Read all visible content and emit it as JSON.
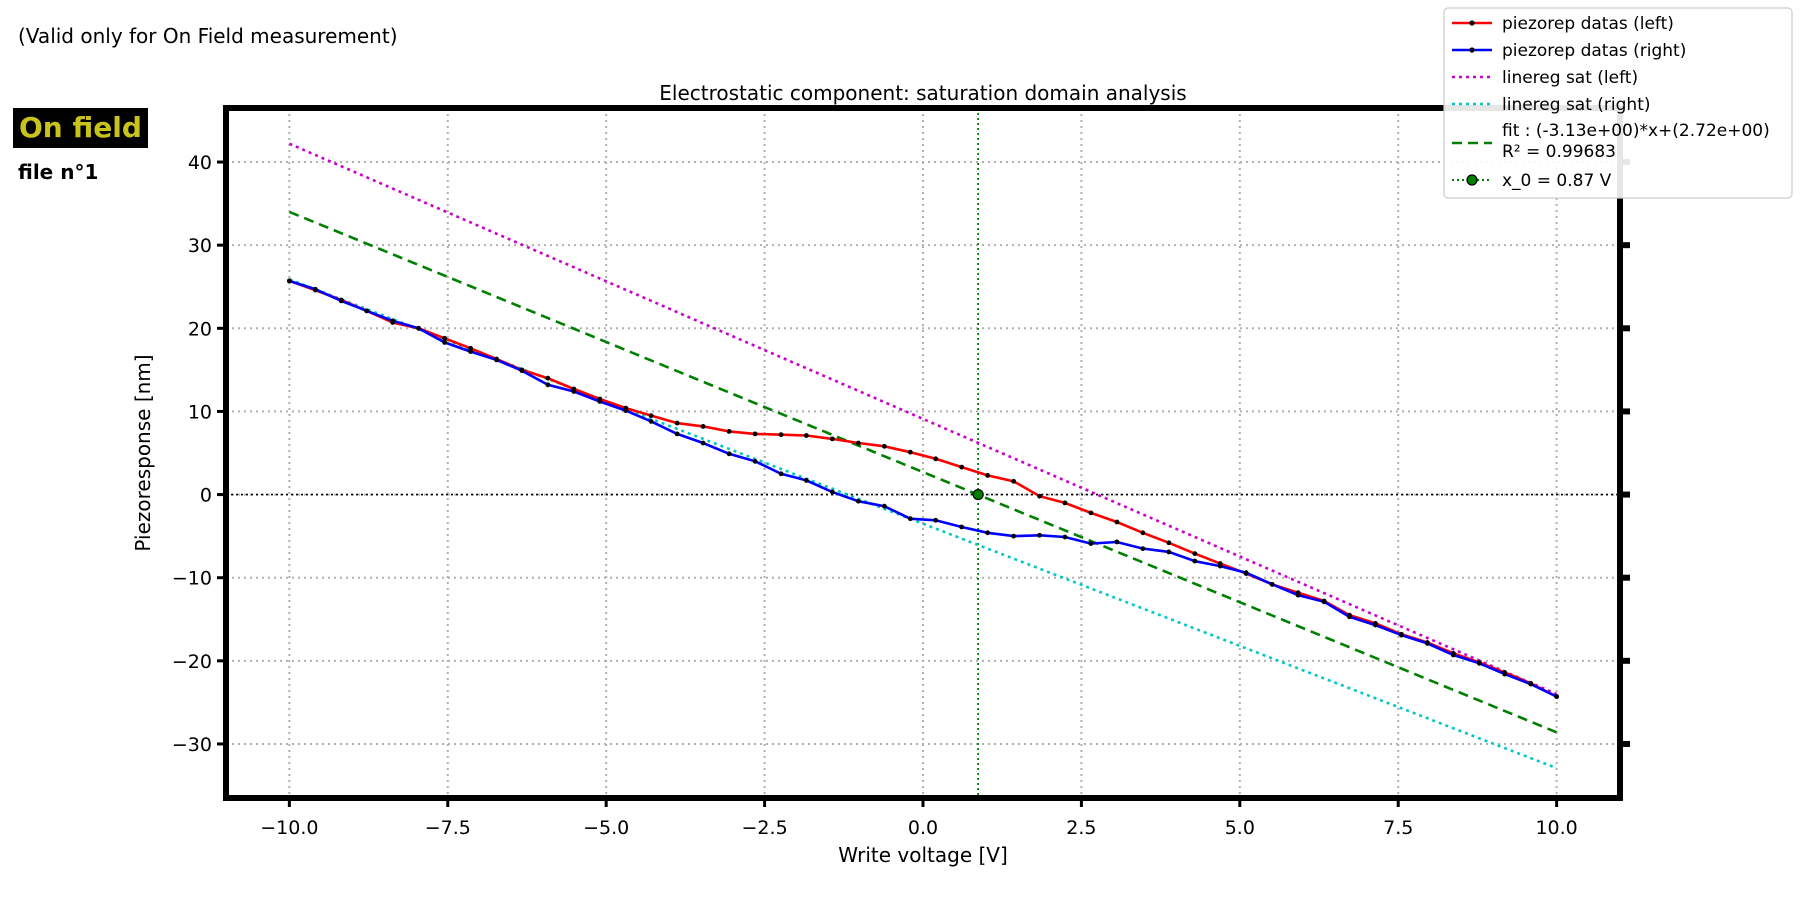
{
  "side_note": "(Valid only for On Field measurement)",
  "badge": "On field",
  "file_label": "file n°1",
  "chart_data": {
    "type": "line",
    "title": "Electrostatic component: saturation domain analysis",
    "xlabel": "Write voltage [V]",
    "ylabel": "Piezoresponse [nm]",
    "xlim": [
      -11,
      11
    ],
    "ylim": [
      -36.5,
      46.5
    ],
    "xticks": [
      -10,
      -7.5,
      -5,
      -2.5,
      0,
      2.5,
      5,
      7.5,
      10
    ],
    "xtick_labels": [
      "−10.0",
      "−7.5",
      "−5.0",
      "−2.5",
      "0.0",
      "2.5",
      "5.0",
      "7.5",
      "10.0"
    ],
    "yticks": [
      -30,
      -20,
      -10,
      0,
      10,
      20,
      30,
      40
    ],
    "ytick_labels": [
      "−30",
      "−20",
      "−10",
      "0",
      "10",
      "20",
      "30",
      "40"
    ],
    "grid": true,
    "legend_position": "top-right",
    "colors": {
      "left": "#ff0000",
      "right": "#0000ff",
      "linereg_left": "#cc00cc",
      "linereg_right": "#00c8c8",
      "fit": "#008000",
      "x0": "#008000"
    },
    "series": [
      {
        "name": "piezorep datas (left)",
        "style": "solid-marker",
        "x": [
          -10,
          -9.59,
          -9.18,
          -8.78,
          -8.37,
          -7.96,
          -7.55,
          -7.14,
          -6.73,
          -6.33,
          -5.92,
          -5.51,
          -5.1,
          -4.69,
          -4.29,
          -3.88,
          -3.47,
          -3.06,
          -2.65,
          -2.24,
          -1.84,
          -1.43,
          -1.02,
          -0.61,
          -0.2,
          0.2,
          0.61,
          1.02,
          1.43,
          1.84,
          2.24,
          2.65,
          3.06,
          3.47,
          3.88,
          4.29,
          4.69,
          5.1,
          5.51,
          5.92,
          6.33,
          6.73,
          7.14,
          7.55,
          7.96,
          8.37,
          8.78,
          9.18,
          9.59,
          10
        ],
        "y": [
          25.7,
          24.6,
          23.4,
          22.1,
          20.7,
          20.0,
          18.8,
          17.6,
          16.3,
          15.0,
          14.0,
          12.7,
          11.5,
          10.4,
          9.5,
          8.6,
          8.2,
          7.6,
          7.3,
          7.2,
          7.1,
          6.7,
          6.2,
          5.8,
          5.1,
          4.3,
          3.3,
          2.3,
          1.6,
          -0.2,
          -1.0,
          -2.2,
          -3.3,
          -4.6,
          -5.8,
          -7.1,
          -8.3,
          -9.5,
          -10.8,
          -11.8,
          -12.8,
          -14.5,
          -15.5,
          -16.8,
          -17.8,
          -19.1,
          -20.2,
          -21.4,
          -22.7,
          -24.3
        ]
      },
      {
        "name": "piezorep datas (right)",
        "style": "solid-marker",
        "x": [
          -10,
          -9.59,
          -9.18,
          -8.78,
          -8.37,
          -7.96,
          -7.55,
          -7.14,
          -6.73,
          -6.33,
          -5.92,
          -5.51,
          -5.1,
          -4.69,
          -4.29,
          -3.88,
          -3.47,
          -3.06,
          -2.65,
          -2.24,
          -1.84,
          -1.43,
          -1.02,
          -0.61,
          -0.2,
          0.2,
          0.61,
          1.02,
          1.43,
          1.84,
          2.24,
          2.65,
          3.06,
          3.47,
          3.88,
          4.29,
          4.69,
          5.1,
          5.51,
          5.92,
          6.33,
          6.73,
          7.14,
          7.55,
          7.96,
          8.37,
          8.78,
          9.18,
          9.59,
          10
        ],
        "y": [
          25.7,
          24.7,
          23.3,
          22.1,
          20.9,
          20.0,
          18.3,
          17.2,
          16.2,
          14.9,
          13.2,
          12.4,
          11.2,
          10.1,
          8.8,
          7.3,
          6.2,
          4.9,
          4.0,
          2.5,
          1.7,
          0.3,
          -0.8,
          -1.4,
          -2.9,
          -3.1,
          -3.9,
          -4.6,
          -5.0,
          -4.9,
          -5.1,
          -5.9,
          -5.7,
          -6.5,
          -6.9,
          -8.0,
          -8.6,
          -9.4,
          -10.8,
          -12.1,
          -12.9,
          -14.7,
          -15.7,
          -16.9,
          -17.9,
          -19.3,
          -20.3,
          -21.6,
          -22.8,
          -24.3
        ]
      },
      {
        "name": "linereg sat (left)",
        "style": "dotted",
        "x": [
          -10,
          10
        ],
        "y": [
          42.2,
          -24.0
        ]
      },
      {
        "name": "linereg sat (right)",
        "style": "dotted",
        "x": [
          -10,
          10
        ],
        "y": [
          25.9,
          -32.9
        ]
      },
      {
        "name": "fit : (-3.13e+00)*x+(2.72e+00)",
        "name_line2": "R² = 0.99683",
        "style": "dashed",
        "x": [
          -10,
          10
        ],
        "y": [
          34.0,
          -28.6
        ]
      }
    ],
    "x0_point": {
      "name": "x_0 = 0.87 V",
      "x": 0.87,
      "y": 0
    },
    "zero_line_y": 0
  }
}
